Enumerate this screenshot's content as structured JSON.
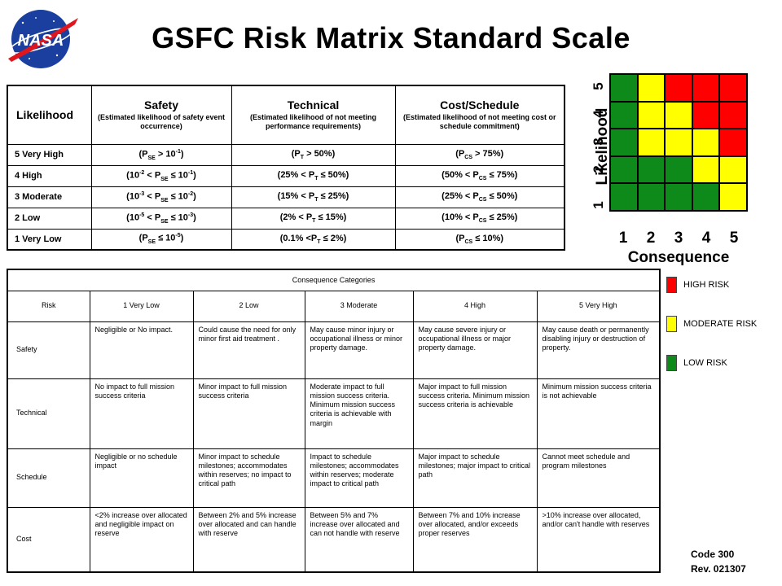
{
  "title": "GSFC Risk Matrix Standard Scale",
  "likelihood_table": {
    "headers": {
      "likelihood": "Likelihood",
      "safety": "Safety",
      "safety_sub": "(Estimated likelihood of safety event occurrence)",
      "technical": "Technical",
      "technical_sub": "(Estimated likelihood of not meeting performance requirements)",
      "cost": "Cost/Schedule",
      "cost_sub": "(Estimated likelihood of not meeting cost or schedule commitment)"
    },
    "rows": [
      {
        "level": "5   Very High",
        "safety": "(P_SE > 10^-1)",
        "technical": "(P_T > 50%)",
        "cost": "(P_CS > 75%)"
      },
      {
        "level": "4   High",
        "safety": "(10^-2 < P_SE ≤ 10^-1)",
        "technical": "(25% < P_T ≤ 50%)",
        "cost": "(50% < P_CS ≤ 75%)"
      },
      {
        "level": "3   Moderate",
        "safety": "(10^-3 < P_SE ≤ 10^-2)",
        "technical": "(15% < P_T ≤ 25%)",
        "cost": "(25% < P_CS ≤ 50%)"
      },
      {
        "level": "2   Low",
        "safety": "(10^-5 < P_SE ≤ 10^-3)",
        "technical": "(2% < P_T ≤ 15%)",
        "cost": "(10% < P_CS ≤ 25%)"
      },
      {
        "level": "1   Very Low",
        "safety": "(P_SE ≤ 10^-5)",
        "technical": "(0.1% <P_T ≤ 2%)",
        "cost": "(P_CS ≤ 10%)"
      }
    ]
  },
  "risk_matrix": {
    "ylabel": "Likelihood",
    "xlabel": "Consequence",
    "likelihood_levels": [
      "1",
      "2",
      "3",
      "4",
      "5"
    ],
    "consequence_levels": [
      "1",
      "2",
      "3",
      "4",
      "5"
    ],
    "colors": {
      "G": "#0e8a1a",
      "Y": "#ffff00",
      "R": "#ff0000"
    },
    "grid_top_to_bottom": [
      [
        "G",
        "Y",
        "R",
        "R",
        "R"
      ],
      [
        "G",
        "Y",
        "Y",
        "R",
        "R"
      ],
      [
        "G",
        "Y",
        "Y",
        "Y",
        "R"
      ],
      [
        "G",
        "G",
        "G",
        "Y",
        "Y"
      ],
      [
        "G",
        "G",
        "G",
        "G",
        "Y"
      ]
    ]
  },
  "consequence_table": {
    "title": "Consequence Categories",
    "headers": [
      "Risk",
      "1 Very Low",
      "2  Low",
      "3  Moderate",
      "4  High",
      "5  Very High"
    ],
    "rows": [
      {
        "category": "Safety",
        "cells": [
          "Negligible or No impact.",
          "Could cause the need for only minor first aid treatment .",
          "May cause minor injury or occupational illness or minor property damage.",
          "May cause severe injury or occupational illness or major property damage.",
          "May cause death or permanently disabling injury or destruction of property."
        ]
      },
      {
        "category": "Technical",
        "cells": [
          "No impact to full mission success criteria",
          "Minor impact to full mission success criteria",
          "Moderate impact to full mission success criteria. Minimum mission success criteria is achievable with margin",
          "Major impact to full mission success criteria. Minimum mission success criteria is achievable",
          "Minimum mission success criteria is not achievable"
        ]
      },
      {
        "category": "Schedule",
        "cells": [
          "Negligible or no schedule impact",
          "Minor impact to schedule milestones; accommodates within reserves; no impact to critical path",
          "Impact to schedule milestones; accommodates within reserves; moderate impact to critical path",
          "Major impact to schedule milestones; major impact to critical path",
          "Cannot meet schedule and program  milestones"
        ]
      },
      {
        "category": "Cost",
        "cells": [
          "<2% increase over allocated and negligible impact on reserve",
          "Between 2% and 5% increase over allocated and can handle with reserve",
          "Between 5% and 7% increase over allocated and can not handle with reserve",
          "Between 7% and 10% increase over allocated, and/or exceeds proper reserves",
          ">10% increase over allocated, and/or can't handle with reserves"
        ]
      }
    ]
  },
  "legend": [
    {
      "label": "HIGH RISK",
      "color": "#ff0000"
    },
    {
      "label": "MODERATE RISK",
      "color": "#ffff00"
    },
    {
      "label": "LOW  RISK",
      "color": "#0e8a1a"
    }
  ],
  "footer": {
    "code": "Code 300",
    "rev": "Rev. 021307"
  }
}
